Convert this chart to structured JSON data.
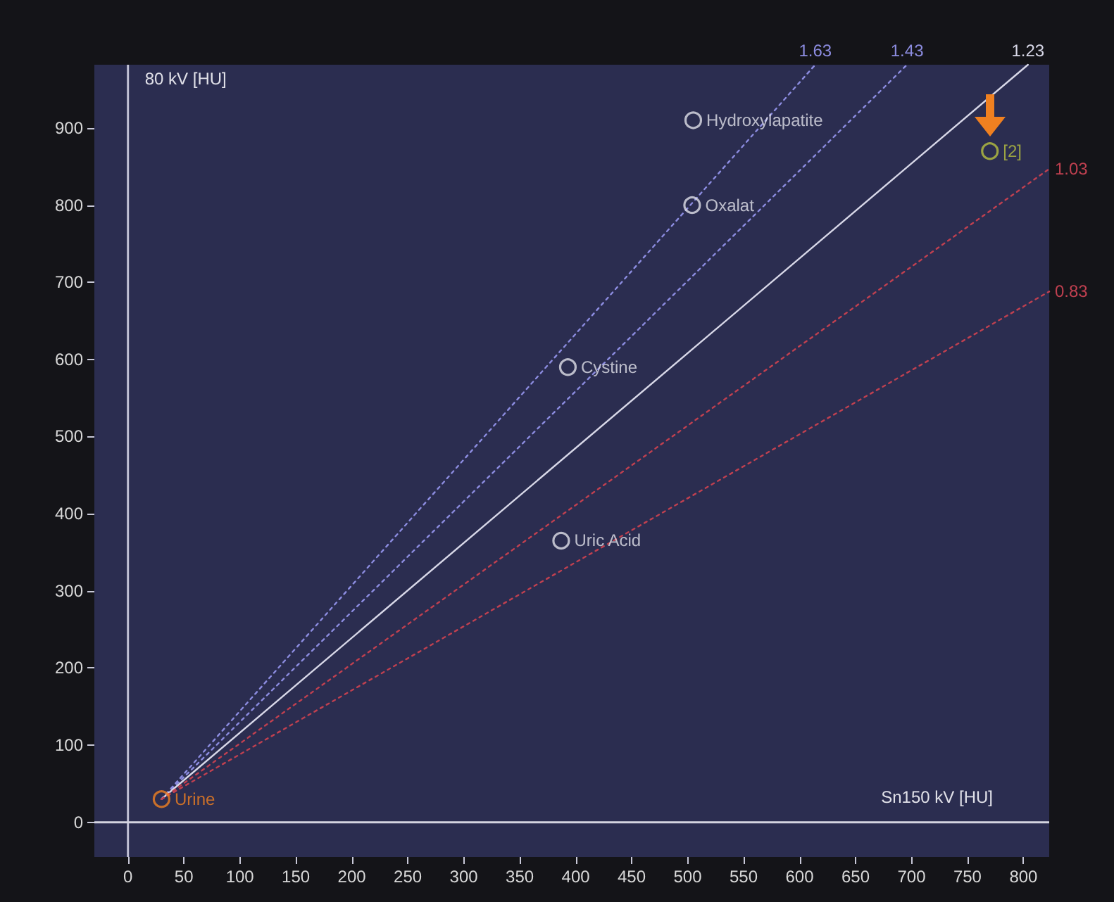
{
  "chart_data": {
    "type": "scatter",
    "xlabel": "Sn150 kV [HU]",
    "ylabel": "80 kV [HU]",
    "xlim": [
      -30,
      823
    ],
    "ylim": [
      -45,
      982
    ],
    "xticks": [
      0,
      50,
      100,
      150,
      200,
      250,
      300,
      350,
      400,
      450,
      500,
      550,
      600,
      650,
      700,
      750,
      800
    ],
    "yticks": [
      0,
      100,
      200,
      300,
      400,
      500,
      600,
      700,
      800,
      900
    ],
    "grid": false,
    "legend": false,
    "marker": "circle",
    "ref_lines": [
      {
        "axis": "x",
        "value": 0,
        "color": "#c0c0d4"
      },
      {
        "axis": "y",
        "value": 0,
        "color": "#d4d4e0"
      }
    ],
    "series": [
      {
        "name": "1.63",
        "type": "line",
        "marker": "none",
        "line_style": "dotted",
        "color": "#8c8ce0",
        "x": [
          30,
          614
        ],
        "values": [
          30,
          982
        ]
      },
      {
        "name": "1.43",
        "type": "line",
        "marker": "none",
        "line_style": "dotted",
        "color": "#8c8ce0",
        "x": [
          30,
          696
        ],
        "values": [
          30,
          982
        ]
      },
      {
        "name": "1.23",
        "type": "line",
        "marker": "none",
        "line_style": "solid",
        "color": "#d8d8e8",
        "x": [
          30,
          804
        ],
        "values": [
          30,
          982
        ]
      },
      {
        "name": "1.03",
        "type": "line",
        "marker": "none",
        "line_style": "dotted",
        "color": "#c04050",
        "x": [
          30,
          823
        ],
        "values": [
          30,
          847
        ]
      },
      {
        "name": "0.83",
        "type": "line",
        "marker": "none",
        "line_style": "dotted",
        "color": "#c04050",
        "x": [
          30,
          823
        ],
        "values": [
          30,
          688
        ]
      },
      {
        "name": "Hydroxylapatite",
        "color": "#e0e0e8",
        "x": [
          505
        ],
        "values": [
          910
        ]
      },
      {
        "name": "Oxalat",
        "color": "#e0e0e8",
        "x": [
          504
        ],
        "values": [
          800
        ]
      },
      {
        "name": "Cystine",
        "color": "#e0e0e8",
        "x": [
          393
        ],
        "values": [
          590
        ]
      },
      {
        "name": "Uric Acid",
        "color": "#e0e0e8",
        "x": [
          387
        ],
        "values": [
          365
        ]
      },
      {
        "name": "[2]",
        "color": "#b8c040",
        "x": [
          770
        ],
        "values": [
          870
        ]
      },
      {
        "name": "Urine",
        "color": "#f08020",
        "x": [
          30
        ],
        "values": [
          30
        ]
      }
    ]
  }
}
